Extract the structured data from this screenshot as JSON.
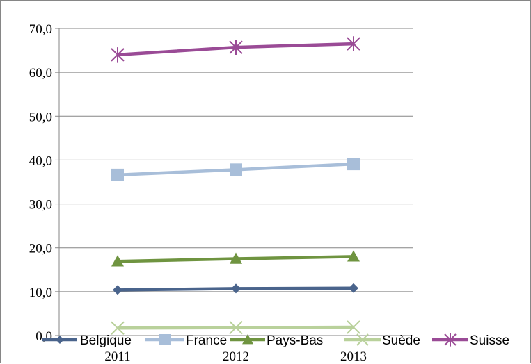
{
  "chart_data": {
    "type": "line",
    "title": "",
    "xlabel": "",
    "ylabel": "",
    "categories": [
      "2011",
      "2012",
      "2013"
    ],
    "ylim": [
      0,
      70
    ],
    "y_ticks": [
      "0,0",
      "10,0",
      "20,0",
      "30,0",
      "40,0",
      "50,0",
      "60,0",
      "70,0"
    ],
    "grid": true,
    "legend_position": "bottom",
    "series": [
      {
        "name": "Belgique",
        "values": [
          10.4,
          10.7,
          10.8
        ],
        "color": "#4a648c",
        "marker": "diamond"
      },
      {
        "name": "France",
        "values": [
          36.6,
          37.8,
          39.1
        ],
        "color": "#a8bed9",
        "marker": "square"
      },
      {
        "name": "Pays-Bas",
        "values": [
          16.9,
          17.5,
          18.0
        ],
        "color": "#6f9440",
        "marker": "triangle"
      },
      {
        "name": "Suède",
        "values": [
          1.7,
          1.8,
          1.9
        ],
        "color": "#b9d19b",
        "marker": "x"
      },
      {
        "name": "Suisse",
        "values": [
          64.0,
          65.7,
          66.5
        ],
        "color": "#9a4b96",
        "marker": "star"
      }
    ]
  }
}
